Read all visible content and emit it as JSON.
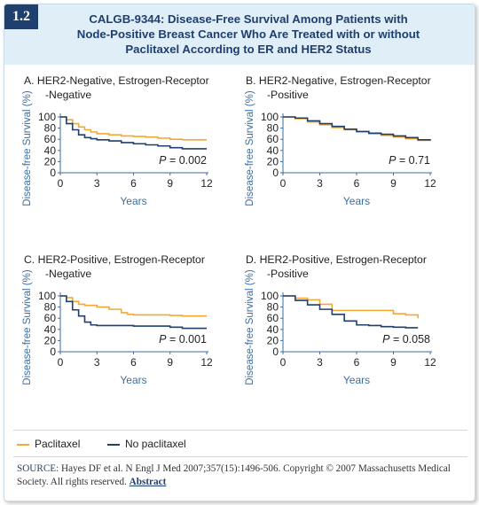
{
  "figure_id": "1.2",
  "title_lines": [
    "CALGB-9344: Disease-Free Survival Among Patients with",
    "Node-Positive Breast Cancer Who Are Treated with or without",
    "Paclitaxel According to ER and HER2 Status"
  ],
  "colors": {
    "paclitaxel": "#f3a935",
    "no_paclitaxel": "#1f3f6e",
    "axis": "#3a6ea5",
    "badge": "#1f3f6e"
  },
  "legend": [
    {
      "label": "Paclitaxel",
      "color": "#f3a935"
    },
    {
      "label": "No paclitaxel",
      "color": "#1f3f6e"
    }
  ],
  "source": {
    "prefix": "SOURCE:",
    "text": "Hayes DF et al. N Engl J Med 2007;357(15):1496-506. Copyright © 2007 Massachusetts Medical Society. All rights reserved.",
    "link": "Abstract"
  },
  "chart_data": [
    {
      "type": "line",
      "title_lines": [
        "A.  HER2-Negative, Estrogen-Receptor",
        "-Negative"
      ],
      "xlabel": "Years",
      "ylabel": "Disease-free Survival (%)",
      "xticks": [
        0,
        3,
        6,
        9,
        12
      ],
      "yticks": [
        0,
        20,
        40,
        60,
        80,
        100
      ],
      "xlim": [
        0,
        12
      ],
      "ylim": [
        0,
        100
      ],
      "grid": false,
      "annotation": "P = 0.002",
      "series": [
        {
          "name": "Paclitaxel",
          "color": "#f3a935",
          "x": [
            0,
            0.5,
            1,
            1.5,
            2,
            2.5,
            3,
            4,
            5,
            6,
            7,
            8,
            9,
            10,
            11,
            12
          ],
          "y": [
            100,
            95,
            88,
            82,
            77,
            73,
            70,
            68,
            66,
            65,
            64,
            62,
            60,
            59,
            59,
            59
          ]
        },
        {
          "name": "No paclitaxel",
          "color": "#1f3f6e",
          "x": [
            0,
            0.5,
            1,
            1.5,
            2,
            2.5,
            3,
            4,
            5,
            6,
            7,
            8,
            9,
            10,
            11,
            12
          ],
          "y": [
            100,
            88,
            77,
            68,
            63,
            61,
            59,
            57,
            54,
            52,
            50,
            48,
            45,
            43,
            43,
            43
          ]
        }
      ]
    },
    {
      "type": "line",
      "title_lines": [
        "B.  HER2-Negative, Estrogen-Receptor",
        "-Positive"
      ],
      "xlabel": "Years",
      "ylabel": "Disease-free Survival (%)",
      "xticks": [
        0,
        3,
        6,
        9,
        12
      ],
      "yticks": [
        0,
        20,
        40,
        60,
        80,
        100
      ],
      "xlim": [
        0,
        12
      ],
      "ylim": [
        0,
        100
      ],
      "grid": false,
      "annotation": "P = 0.71",
      "series": [
        {
          "name": "Paclitaxel",
          "color": "#f3a935",
          "x": [
            0,
            1,
            2,
            3,
            4,
            5,
            6,
            7,
            8,
            9,
            10,
            11,
            12
          ],
          "y": [
            100,
            97,
            91,
            86,
            81,
            77,
            73,
            70,
            67,
            64,
            61,
            58,
            57
          ]
        },
        {
          "name": "No paclitaxel",
          "color": "#1f3f6e",
          "x": [
            0,
            1,
            2,
            3,
            4,
            5,
            6,
            7,
            8,
            9,
            10,
            11,
            12
          ],
          "y": [
            100,
            98,
            93,
            88,
            83,
            78,
            74,
            71,
            69,
            66,
            63,
            59,
            58
          ]
        }
      ]
    },
    {
      "type": "line",
      "title_lines": [
        "C.  HER2-Positive, Estrogen-Receptor",
        "-Negative"
      ],
      "xlabel": "Years",
      "ylabel": "Disease-free Survival (%)",
      "xticks": [
        0,
        3,
        6,
        9,
        12
      ],
      "yticks": [
        0,
        20,
        40,
        60,
        80,
        100
      ],
      "xlim": [
        0,
        12
      ],
      "ylim": [
        0,
        100
      ],
      "grid": false,
      "annotation": "P = 0.001",
      "series": [
        {
          "name": "Paclitaxel",
          "color": "#f3a935",
          "x": [
            0,
            0.5,
            1,
            1.5,
            2,
            3,
            4,
            5,
            5.5,
            6,
            8,
            9,
            10,
            11,
            12
          ],
          "y": [
            100,
            97,
            90,
            85,
            83,
            80,
            76,
            70,
            67,
            66,
            66,
            65,
            64,
            64,
            64
          ]
        },
        {
          "name": "No paclitaxel",
          "color": "#1f3f6e",
          "x": [
            0,
            0.5,
            1,
            1.5,
            2,
            2.5,
            3,
            4,
            5,
            6,
            7,
            8,
            9,
            10,
            11,
            12
          ],
          "y": [
            100,
            90,
            75,
            64,
            53,
            48,
            47,
            47,
            47,
            46,
            46,
            46,
            44,
            42,
            42,
            42
          ]
        }
      ]
    },
    {
      "type": "line",
      "title_lines": [
        "D.  HER2-Positive, Estrogen-Receptor",
        "-Positive"
      ],
      "xlabel": "Years",
      "ylabel": "Disease-free Survival (%)",
      "xticks": [
        0,
        3,
        6,
        9,
        12
      ],
      "yticks": [
        0,
        20,
        40,
        60,
        80,
        100
      ],
      "xlim": [
        0,
        12
      ],
      "ylim": [
        0,
        100
      ],
      "grid": false,
      "annotation": "P = 0.058",
      "series": [
        {
          "name": "Paclitaxel",
          "color": "#f3a935",
          "x": [
            0,
            1,
            2,
            3,
            4,
            6,
            8,
            9,
            10,
            11
          ],
          "y": [
            100,
            96,
            93,
            85,
            74,
            74,
            74,
            68,
            66,
            60
          ]
        },
        {
          "name": "No paclitaxel",
          "color": "#1f3f6e",
          "x": [
            0,
            1,
            2,
            3,
            4,
            5,
            6,
            7,
            8,
            9,
            10,
            11
          ],
          "y": [
            100,
            92,
            84,
            76,
            67,
            55,
            48,
            47,
            45,
            44,
            43,
            43
          ]
        }
      ]
    }
  ]
}
